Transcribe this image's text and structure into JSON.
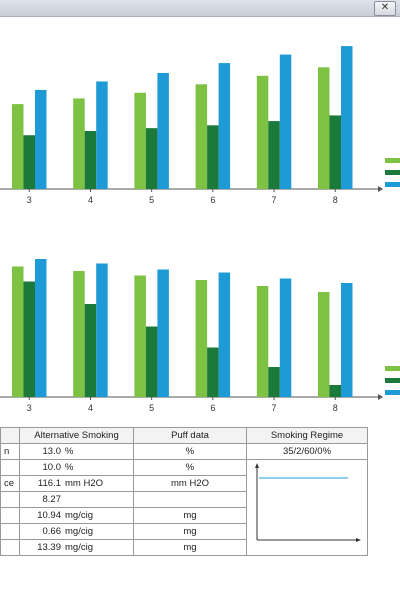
{
  "colors": {
    "light_green": "#7dc243",
    "dark_green": "#1b7a3a",
    "blue": "#1e9bd7",
    "axis": "#555555"
  },
  "window": {
    "buttons": [
      {
        "icon": "close-icon",
        "glyph": "✕"
      }
    ]
  },
  "chart_data": [
    {
      "type": "bar",
      "categories": [
        "3",
        "4",
        "5",
        "6",
        "7",
        "8"
      ],
      "series": [
        {
          "color": "#7dc243",
          "values": [
            60,
            64,
            68,
            74,
            80,
            86
          ]
        },
        {
          "color": "#1b7a3a",
          "values": [
            38,
            41,
            43,
            45,
            48,
            52
          ]
        },
        {
          "color": "#1e9bd7",
          "values": [
            70,
            76,
            82,
            89,
            95,
            101
          ]
        }
      ],
      "ylim": [
        0,
        106
      ]
    },
    {
      "type": "bar",
      "categories": [
        "3",
        "4",
        "5",
        "6",
        "7",
        "8"
      ],
      "series": [
        {
          "color": "#7dc243",
          "values": [
            87,
            84,
            81,
            78,
            74,
            70
          ]
        },
        {
          "color": "#1b7a3a",
          "values": [
            77,
            62,
            47,
            33,
            20,
            8
          ]
        },
        {
          "color": "#1e9bd7",
          "values": [
            92,
            89,
            85,
            83,
            79,
            76
          ]
        }
      ],
      "ylim": [
        0,
        100
      ]
    }
  ],
  "table": {
    "headers": [
      "Alternative Smoking",
      "Puff data",
      "Smoking Regime"
    ],
    "regime_value": "35/2/60/0%",
    "rows": [
      {
        "stub": "n",
        "value": "13.0",
        "unit": "%",
        "puff": "%"
      },
      {
        "stub": "",
        "value": "10.0",
        "unit": "%",
        "puff": "%"
      },
      {
        "stub": "ce",
        "value": "116.1",
        "unit": "mm H2O",
        "puff": "mm H2O"
      },
      {
        "stub": "",
        "value": "8.27",
        "unit": "",
        "puff": ""
      },
      {
        "stub": "",
        "value": "10.94",
        "unit": "mg/cig",
        "puff": "mg"
      },
      {
        "stub": "",
        "value": "0.66",
        "unit": "mg/cig",
        "puff": "mg"
      },
      {
        "stub": "",
        "value": "13.39",
        "unit": "mg/cig",
        "puff": "mg"
      }
    ]
  }
}
